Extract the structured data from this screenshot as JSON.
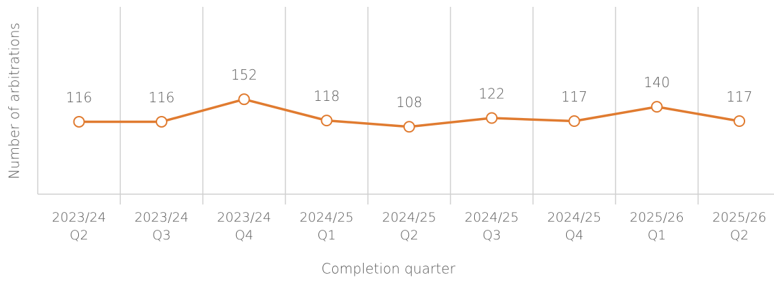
{
  "chart_data": {
    "type": "line",
    "x_label": "Completion quarter",
    "y_label": "Number of arbitrations",
    "categories": [
      "2023/24 Q2",
      "2023/24 Q3",
      "2023/24 Q4",
      "2024/25 Q1",
      "2024/25 Q2",
      "2024/25 Q3",
      "2024/25 Q4",
      "2025/26 Q1",
      "2025/26 Q2"
    ],
    "series": [
      {
        "name": "Number of arbitrations",
        "color": "#E07B30",
        "values": [
          116,
          116,
          152,
          118,
          108,
          122,
          117,
          140,
          117
        ]
      }
    ],
    "ylim": [
      0,
      300
    ],
    "grid": true
  }
}
